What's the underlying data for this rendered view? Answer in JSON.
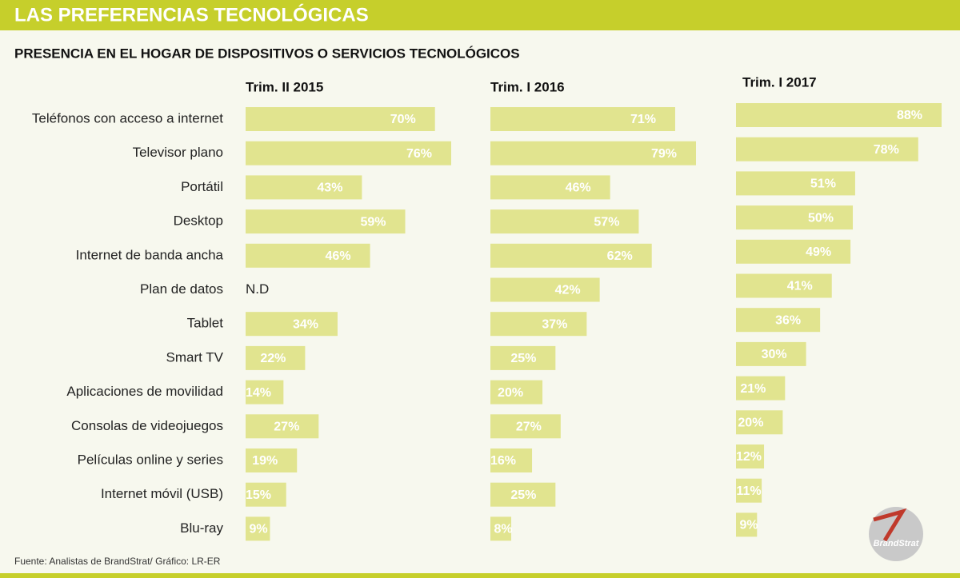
{
  "header": {
    "title": "LAS PREFERENCIAS TECNOLÓGICAS",
    "subtitle": "PRESENCIA EN EL HOGAR DE DISPOSITIVOS O SERVICIOS TECNOLÓGICOS"
  },
  "chart_data": [
    {
      "type": "bar",
      "title": "Trim. II 2015",
      "color": "#e1e48f",
      "categories": [
        "Teléfonos con acceso a internet",
        "Televisor plano",
        "Portátil",
        "Desktop",
        "Internet de banda ancha",
        "Plan de datos",
        "Tablet",
        "Smart TV",
        "Aplicaciones de movilidad",
        "Consolas de videojuegos",
        "Películas online y series",
        "Internet móvil (USB)",
        "Blu-ray"
      ],
      "values": [
        70,
        76,
        43,
        59,
        46,
        null,
        34,
        22,
        14,
        27,
        19,
        15,
        9
      ],
      "value_labels": [
        "70%",
        "76%",
        "43%",
        "59%",
        "46%",
        "N.D",
        "34%",
        "22%",
        "14%",
        "27%",
        "19%",
        "15%",
        "9%"
      ]
    },
    {
      "type": "bar",
      "title": "Trim. I 2016",
      "color": "#e1e48f",
      "values": [
        71,
        79,
        46,
        57,
        62,
        42,
        37,
        25,
        20,
        27,
        16,
        25,
        8
      ],
      "value_labels": [
        "71%",
        "79%",
        "46%",
        "57%",
        "62%",
        "42%",
        "37%",
        "25%",
        "20%",
        "27%",
        "16%",
        "25%",
        "8%"
      ]
    },
    {
      "type": "bar",
      "title": "Trim. I 2017",
      "color": "#e1e48f",
      "values": [
        88,
        78,
        51,
        50,
        49,
        41,
        36,
        30,
        21,
        20,
        12,
        11,
        9
      ],
      "value_labels": [
        "88%",
        "78%",
        "51%",
        "50%",
        "49%",
        "41%",
        "36%",
        "30%",
        "21%",
        "20%",
        "12%",
        "11%",
        "9%"
      ]
    }
  ],
  "source": "Fuente: Analistas de BrandStrat/ Gráfico: LR-ER",
  "logo": "BrandStrat"
}
